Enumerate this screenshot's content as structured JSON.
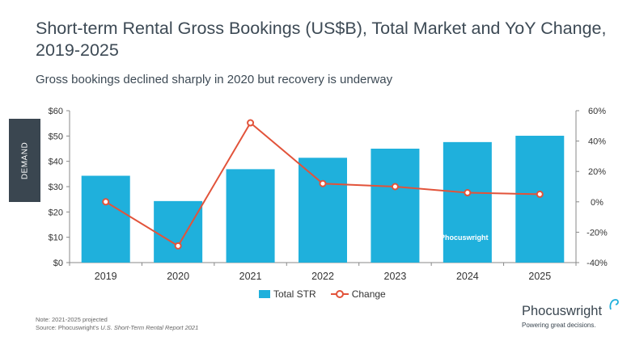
{
  "header": {
    "title": "Short-term Rental Gross Bookings (US$B), Total Market and YoY Change, 2019-2025",
    "subtitle": "Gross bookings declined sharply in 2020 but recovery is underway"
  },
  "side_tab": {
    "label": "DEMAND"
  },
  "watermark": "Phocuswright",
  "footnote": {
    "note": "Note: 2021-2025 projected",
    "source_prefix": "Source: Phocuswright's ",
    "source_title": "U.S. Short-Term Rental Report 2021"
  },
  "brand": {
    "name": "Phocuswright",
    "tagline": "Powering great decisions."
  },
  "colors": {
    "bar": "#1fb0dc",
    "line": "#e2533a",
    "axis": "#888888",
    "text": "#3d4a55"
  },
  "chart_data": {
    "type": "bar",
    "categories": [
      "2019",
      "2020",
      "2021",
      "2022",
      "2023",
      "2024",
      "2025"
    ],
    "series": [
      {
        "name": "Total STR",
        "type": "bar",
        "axis": "left",
        "values": [
          34.3,
          24.3,
          36.9,
          41.4,
          45.0,
          47.6,
          50.1
        ]
      },
      {
        "name": "Change",
        "type": "line",
        "axis": "right",
        "values": [
          0,
          -29,
          52,
          12,
          10,
          6,
          5
        ]
      }
    ],
    "y_left": {
      "ylim": [
        0,
        60
      ],
      "ticks": [
        "$0",
        "$10",
        "$20",
        "$30",
        "$40",
        "$50",
        "$60"
      ]
    },
    "y_right": {
      "ylim": [
        -40,
        60
      ],
      "ticks": [
        "-40%",
        "-20%",
        "0%",
        "20%",
        "40%",
        "60%"
      ]
    },
    "grid": false,
    "legend": "bottom"
  }
}
